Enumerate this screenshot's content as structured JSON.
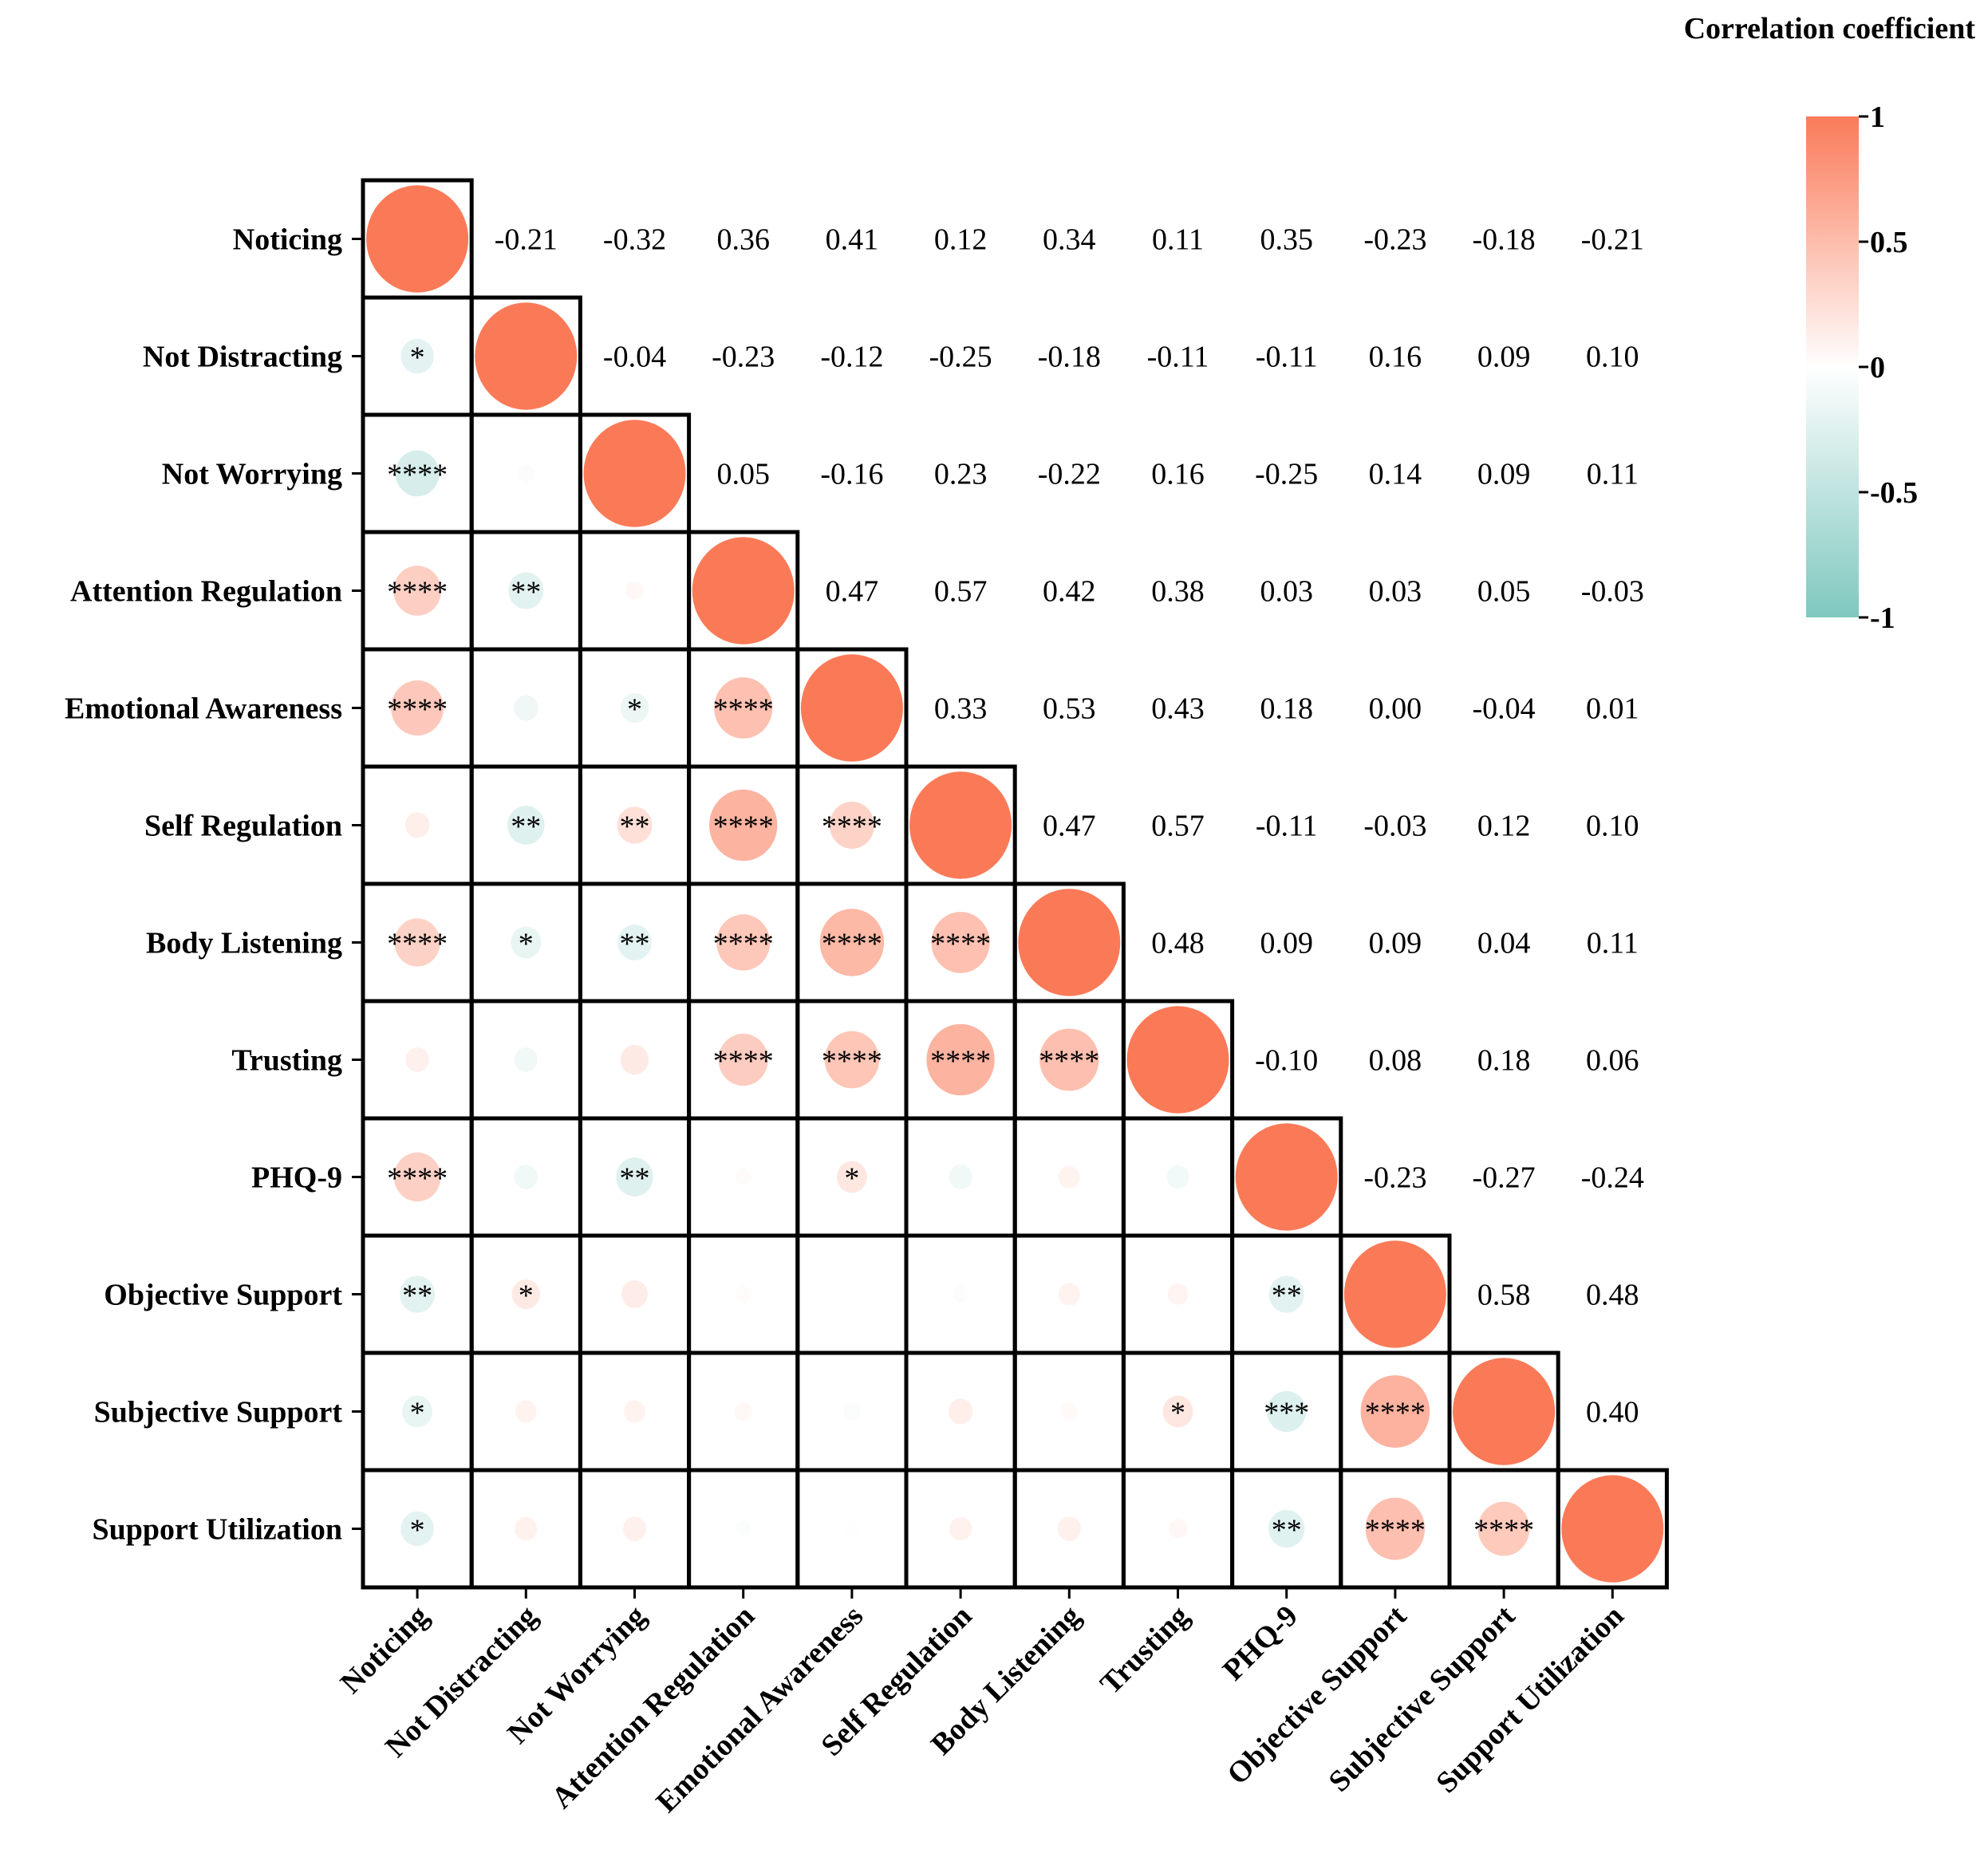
{
  "chart_data": {
    "type": "heatmap",
    "subtype": "correlogram-lower-circles-upper-values",
    "title": "",
    "variables": [
      "Noticing",
      "Not Distracting",
      "Not Worrying",
      "Attention Regulation",
      "Emotional Awareness",
      "Self Regulation",
      "Body Listening",
      "Trusting",
      "PHQ-9",
      "Objective Support",
      "Subjective Support",
      "Support Utilization"
    ],
    "upper_values": [
      [
        null,
        -0.21,
        -0.32,
        0.36,
        0.41,
        0.12,
        0.34,
        0.11,
        0.35,
        -0.23,
        -0.18,
        -0.21
      ],
      [
        null,
        null,
        -0.04,
        -0.23,
        -0.12,
        -0.25,
        -0.18,
        -0.11,
        -0.11,
        0.16,
        0.09,
        0.1
      ],
      [
        null,
        null,
        null,
        0.05,
        -0.16,
        0.23,
        -0.22,
        0.16,
        -0.25,
        0.14,
        0.09,
        0.11
      ],
      [
        null,
        null,
        null,
        null,
        0.47,
        0.57,
        0.42,
        0.38,
        0.03,
        0.03,
        0.05,
        -0.03
      ],
      [
        null,
        null,
        null,
        null,
        null,
        0.33,
        0.53,
        0.43,
        0.18,
        0.0,
        -0.04,
        0.01
      ],
      [
        null,
        null,
        null,
        null,
        null,
        null,
        0.47,
        0.57,
        -0.11,
        -0.03,
        0.12,
        0.1
      ],
      [
        null,
        null,
        null,
        null,
        null,
        null,
        null,
        0.48,
        0.09,
        0.09,
        0.04,
        0.11
      ],
      [
        null,
        null,
        null,
        null,
        null,
        null,
        null,
        null,
        -0.1,
        0.08,
        0.18,
        0.06
      ],
      [
        null,
        null,
        null,
        null,
        null,
        null,
        null,
        null,
        null,
        -0.23,
        -0.27,
        -0.24
      ],
      [
        null,
        null,
        null,
        null,
        null,
        null,
        null,
        null,
        null,
        null,
        0.58,
        0.48
      ],
      [
        null,
        null,
        null,
        null,
        null,
        null,
        null,
        null,
        null,
        null,
        null,
        0.4
      ],
      [
        null,
        null,
        null,
        null,
        null,
        null,
        null,
        null,
        null,
        null,
        null,
        null
      ]
    ],
    "significance_lower": [
      [],
      [
        "*"
      ],
      [
        "****",
        ""
      ],
      [
        "****",
        "**",
        ""
      ],
      [
        "****",
        "",
        "*",
        "****"
      ],
      [
        "",
        "**",
        "**",
        "****",
        "****"
      ],
      [
        "****",
        "*",
        "**",
        "****",
        "****",
        "****"
      ],
      [
        "",
        "",
        "",
        "****",
        "****",
        "****",
        "****"
      ],
      [
        "****",
        "",
        "**",
        "",
        "*",
        "",
        "",
        ""
      ],
      [
        "**",
        "*",
        "",
        "",
        "",
        "",
        "",
        "",
        "**"
      ],
      [
        "*",
        "",
        "",
        "",
        "",
        "",
        "",
        "*",
        "***",
        "****"
      ],
      [
        "*",
        "",
        "",
        "",
        "",
        "",
        "",
        "",
        "**",
        "****",
        "****"
      ]
    ],
    "diagonal_value": 1,
    "colorbar": {
      "title": "Correlation coefficient",
      "ticks": [
        "1",
        "0.5",
        "0",
        "-0.5",
        "-1"
      ],
      "range": [
        -1,
        1
      ],
      "position": "top-right",
      "colors": {
        "positive": "#FA7A58",
        "zero": "#FFFFFF",
        "negative": "#7FC8BF"
      }
    },
    "xlabel": "",
    "ylabel": "",
    "grid": true
  }
}
